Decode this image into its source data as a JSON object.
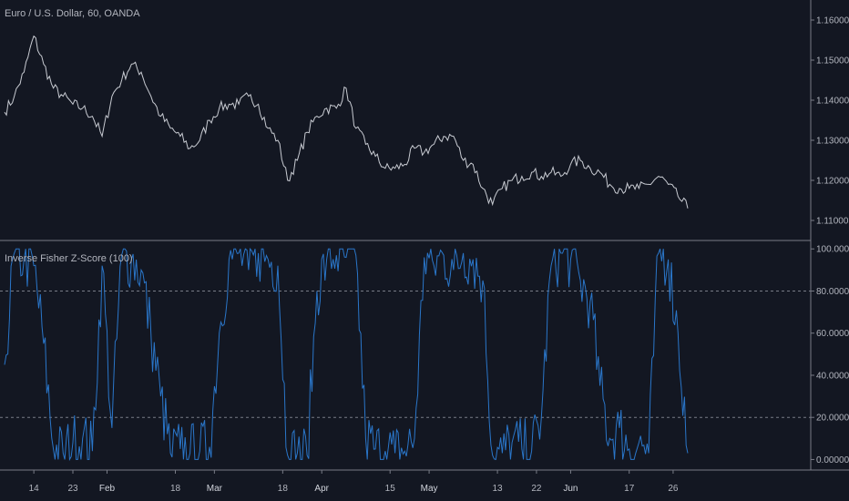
{
  "colors": {
    "background": "#131722",
    "axis": "#787b86",
    "price_line": "#c8cbd2",
    "indicator_line": "#2a76c9",
    "level_line": "#787b86",
    "text": "#b2b5be"
  },
  "chart_data": [
    {
      "type": "line",
      "title": "Euro / U.S. Dollar, 60, OANDA",
      "ylim": [
        1.105,
        1.165
      ],
      "yticks": [
        "1.16000",
        "1.15000",
        "1.14000",
        "1.13000",
        "1.12000",
        "1.11000"
      ],
      "ytick_values": [
        1.16,
        1.15,
        1.14,
        1.13,
        1.12,
        1.11
      ],
      "x": [
        0,
        2,
        4,
        6,
        8,
        10,
        12,
        14,
        16,
        18,
        20,
        22,
        24,
        26,
        28,
        30,
        32,
        34,
        36,
        38,
        40,
        42,
        44,
        46,
        48,
        50,
        52,
        54,
        56,
        58,
        60,
        62,
        64,
        66,
        68,
        70,
        72,
        74,
        76,
        78,
        80,
        82,
        84,
        86,
        88,
        90,
        92,
        94,
        96,
        98,
        100,
        102,
        104,
        106,
        108,
        110,
        112,
        114,
        116,
        118,
        120,
        122,
        124,
        126,
        128,
        130,
        132,
        134,
        136,
        138,
        140
      ],
      "series": [
        {
          "values": [
            1.137,
            1.141,
            1.147,
            1.156,
            1.149,
            1.143,
            1.141,
            1.139,
            1.138,
            1.136,
            1.131,
            1.141,
            1.145,
            1.149,
            1.147,
            1.141,
            1.136,
            1.133,
            1.131,
            1.128,
            1.13,
            1.135,
            1.138,
            1.139,
            1.139,
            1.141,
            1.139,
            1.133,
            1.13,
            1.12,
            1.125,
            1.132,
            1.136,
            1.138,
            1.138,
            1.143,
            1.133,
            1.129,
            1.126,
            1.123,
            1.123,
            1.124,
            1.128,
            1.127,
            1.129,
            1.131,
            1.131,
            1.125,
            1.124,
            1.118,
            1.114,
            1.118,
            1.12,
            1.121,
            1.122,
            1.121,
            1.122,
            1.121,
            1.124,
            1.125,
            1.123,
            1.122,
            1.119,
            1.118,
            1.118,
            1.118,
            1.119,
            1.121,
            1.119,
            1.116,
            1.113
          ]
        }
      ]
    },
    {
      "type": "line",
      "title": "Inverse Fisher Z-Score (100)",
      "ylim": [
        -5,
        104
      ],
      "yticks": [
        "100.00000",
        "80.00000",
        "60.00000",
        "40.00000",
        "20.00000",
        "0.00000"
      ],
      "ytick_values": [
        100,
        80,
        60,
        40,
        20,
        0
      ],
      "levels": [
        80,
        20
      ],
      "x": [
        0,
        2,
        4,
        6,
        8,
        10,
        12,
        14,
        16,
        18,
        20,
        22,
        24,
        26,
        28,
        30,
        32,
        34,
        36,
        38,
        40,
        42,
        44,
        46,
        48,
        50,
        52,
        54,
        56,
        58,
        60,
        62,
        64,
        66,
        68,
        70,
        72,
        74,
        76,
        78,
        80,
        82,
        84,
        86,
        88,
        90,
        92,
        94,
        96,
        98,
        100,
        102,
        104,
        106,
        108,
        110,
        112,
        114,
        116,
        118,
        120,
        122,
        124,
        126,
        128,
        130,
        132,
        134,
        136,
        138,
        140
      ],
      "series": [
        {
          "values": [
            45,
            98,
            95,
            92,
            55,
            5,
            3,
            8,
            10,
            4,
            92,
            15,
            97,
            95,
            90,
            60,
            30,
            3,
            5,
            3,
            4,
            6,
            60,
            95,
            98,
            90,
            98,
            95,
            92,
            2,
            3,
            2,
            80,
            95,
            97,
            96,
            97,
            10,
            5,
            4,
            3,
            4,
            10,
            96,
            92,
            97,
            90,
            98,
            95,
            85,
            2,
            3,
            8,
            5,
            4,
            20,
            92,
            98,
            95,
            85,
            75,
            35,
            10,
            15,
            5,
            8,
            3,
            98,
            95,
            60,
            3
          ]
        }
      ]
    }
  ],
  "x_axis": {
    "labels": [
      "14",
      "23",
      "Feb",
      "18",
      "Mar",
      "18",
      "Apr",
      "15",
      "May",
      "13",
      "22",
      "Jun",
      "17",
      "26"
    ],
    "label_positions": [
      6,
      14,
      21,
      35,
      43,
      57,
      65,
      79,
      87,
      101,
      109,
      116,
      128,
      137
    ],
    "bold": [
      false,
      false,
      true,
      false,
      true,
      false,
      true,
      false,
      true,
      false,
      false,
      true,
      false,
      false
    ]
  }
}
